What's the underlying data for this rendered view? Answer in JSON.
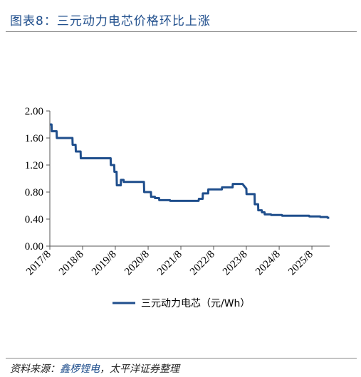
{
  "header": {
    "title": "图表8：三元动力电芯价格环比上涨"
  },
  "footer": {
    "source_prefix": "资料来源：",
    "source_highlight": "鑫椤锂电",
    "source_rest": "，太平洋证券整理"
  },
  "colors": {
    "line": "#1f4e8c",
    "title": "#1f4e8c"
  },
  "chart_data": {
    "type": "line",
    "title": "",
    "xlabel": "",
    "ylabel": "",
    "ylim": [
      0.0,
      2.0
    ],
    "yticks": [
      "0.00",
      "0.40",
      "0.80",
      "1.20",
      "1.60",
      "2.00"
    ],
    "xticks": [
      "2017/8",
      "2018/8",
      "2019/8",
      "2020/8",
      "2021/8",
      "2022/8",
      "2023/8",
      "2024/8",
      "2025/8"
    ],
    "xlim": [
      "2017-08-01",
      "2026-02-15"
    ],
    "legend": "bottom-center",
    "series": [
      {
        "name": "三元动力电芯（元/Wh）",
        "points": [
          [
            "2017-08-01",
            1.8
          ],
          [
            "2017-08-20",
            1.8
          ],
          [
            "2017-08-22",
            1.7
          ],
          [
            "2017-10-15",
            1.7
          ],
          [
            "2017-10-18",
            1.6
          ],
          [
            "2018-04-10",
            1.6
          ],
          [
            "2018-04-12",
            1.5
          ],
          [
            "2018-05-15",
            1.5
          ],
          [
            "2018-05-18",
            1.4
          ],
          [
            "2018-07-10",
            1.4
          ],
          [
            "2018-07-12",
            1.3
          ],
          [
            "2019-06-10",
            1.3
          ],
          [
            "2019-06-12",
            1.2
          ],
          [
            "2019-07-20",
            1.2
          ],
          [
            "2019-07-22",
            1.1
          ],
          [
            "2019-08-15",
            1.1
          ],
          [
            "2019-08-18",
            0.9
          ],
          [
            "2019-10-01",
            0.9
          ],
          [
            "2019-10-03",
            0.98
          ],
          [
            "2019-11-01",
            0.98
          ],
          [
            "2019-11-03",
            0.95
          ],
          [
            "2020-06-15",
            0.95
          ],
          [
            "2020-06-18",
            0.8
          ],
          [
            "2020-09-01",
            0.8
          ],
          [
            "2020-09-03",
            0.73
          ],
          [
            "2020-10-15",
            0.73
          ],
          [
            "2020-10-17",
            0.71
          ],
          [
            "2020-12-01",
            0.71
          ],
          [
            "2020-12-03",
            0.68
          ],
          [
            "2021-04-01",
            0.68
          ],
          [
            "2021-04-03",
            0.67
          ],
          [
            "2022-02-15",
            0.67
          ],
          [
            "2022-02-18",
            0.7
          ],
          [
            "2022-04-01",
            0.7
          ],
          [
            "2022-04-03",
            0.78
          ],
          [
            "2022-06-01",
            0.78
          ],
          [
            "2022-06-03",
            0.84
          ],
          [
            "2022-11-01",
            0.84
          ],
          [
            "2022-11-03",
            0.87
          ],
          [
            "2023-03-01",
            0.87
          ],
          [
            "2023-03-03",
            0.92
          ],
          [
            "2023-06-20",
            0.92
          ],
          [
            "2023-07-01",
            0.9
          ],
          [
            "2023-08-01",
            0.85
          ],
          [
            "2023-08-03",
            0.77
          ],
          [
            "2023-11-01",
            0.77
          ],
          [
            "2023-11-03",
            0.62
          ],
          [
            "2023-12-10",
            0.62
          ],
          [
            "2023-12-12",
            0.53
          ],
          [
            "2024-01-20",
            0.53
          ],
          [
            "2024-01-22",
            0.5
          ],
          [
            "2024-02-20",
            0.5
          ],
          [
            "2024-02-22",
            0.47
          ],
          [
            "2024-05-01",
            0.47
          ],
          [
            "2024-05-03",
            0.46
          ],
          [
            "2024-09-01",
            0.46
          ],
          [
            "2024-09-03",
            0.45
          ],
          [
            "2025-07-01",
            0.45
          ],
          [
            "2025-07-03",
            0.44
          ],
          [
            "2025-11-01",
            0.44
          ],
          [
            "2025-11-03",
            0.43
          ],
          [
            "2026-01-20",
            0.43
          ],
          [
            "2026-01-22",
            0.42
          ],
          [
            "2026-02-10",
            0.42
          ]
        ]
      }
    ]
  }
}
